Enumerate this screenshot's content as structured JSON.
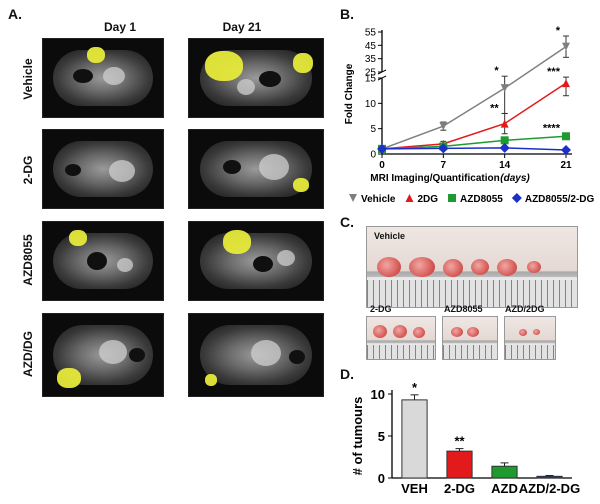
{
  "panels": {
    "a": {
      "letter": "A.",
      "col_headers": [
        "Day 1",
        "Day 21"
      ],
      "row_labels": [
        "Vehicle",
        "2-DG",
        "AZD8055",
        "AZD/DG"
      ]
    },
    "b": {
      "letter": "B."
    },
    "c": {
      "letter": "C.",
      "labels": [
        "Vehicle",
        "2-DG",
        "AZD8055",
        "AZD/2DG"
      ]
    },
    "d": {
      "letter": "D."
    }
  },
  "colors": {
    "vehicle": "#7f7f7f",
    "twodg": "#e31a1c",
    "azd": "#1f9a2f",
    "combo": "#1c2fc9",
    "tumor_overlay": "#e6ea3a"
  },
  "chart_data": [
    {
      "type": "line",
      "panel": "B",
      "xlabel": "MRI Imaging/Quantification",
      "xlabel_unit": "(days)",
      "ylabel": "Fold Change",
      "x": [
        0,
        7,
        14,
        21
      ],
      "x_ticks": [
        "0",
        "7",
        "14",
        "21"
      ],
      "y_ticks": [
        "0",
        "5",
        "10",
        "15",
        "25",
        "35",
        "45",
        "55"
      ],
      "y_axis_break": [
        15,
        25
      ],
      "series": [
        {
          "name": "Vehicle",
          "marker": "triangle-down",
          "values": [
            1,
            5.5,
            13,
            44
          ],
          "errors": [
            0.3,
            0.8,
            5,
            8
          ],
          "annotations": [
            {
              "x": 14,
              "text": "*"
            },
            {
              "x": 21,
              "text": "*"
            }
          ]
        },
        {
          "name": "2DG",
          "marker": "triangle-up",
          "values": [
            1,
            2,
            6,
            14
          ],
          "errors": [
            0.2,
            0.5,
            2,
            2.5
          ],
          "annotations": [
            {
              "x": 14,
              "text": "**"
            },
            {
              "x": 21,
              "text": "***"
            }
          ]
        },
        {
          "name": "AZD8055",
          "marker": "square",
          "values": [
            1,
            1.5,
            2.7,
            3.5
          ],
          "errors": [
            0.2,
            0.3,
            0.4,
            0.5
          ],
          "annotations": [
            {
              "x": 21,
              "text": "****"
            }
          ]
        },
        {
          "name": "AZD8055/2-DG",
          "marker": "diamond",
          "values": [
            1,
            1.1,
            1.2,
            0.8
          ],
          "errors": [
            0.1,
            0.2,
            0.2,
            0.2
          ],
          "annotations": []
        }
      ]
    },
    {
      "type": "bar",
      "panel": "D",
      "ylabel": "# of tumours",
      "categories": [
        "VEH",
        "2-DG",
        "AZD",
        "AZD/2-DG"
      ],
      "values": [
        9.3,
        3.2,
        1.4,
        0.2
      ],
      "errors": [
        0.6,
        0.3,
        0.4,
        0.1
      ],
      "annotations": [
        "*",
        "**",
        "",
        ""
      ],
      "ylim": [
        0,
        10
      ],
      "y_ticks": [
        "0",
        "5",
        "10"
      ]
    }
  ]
}
